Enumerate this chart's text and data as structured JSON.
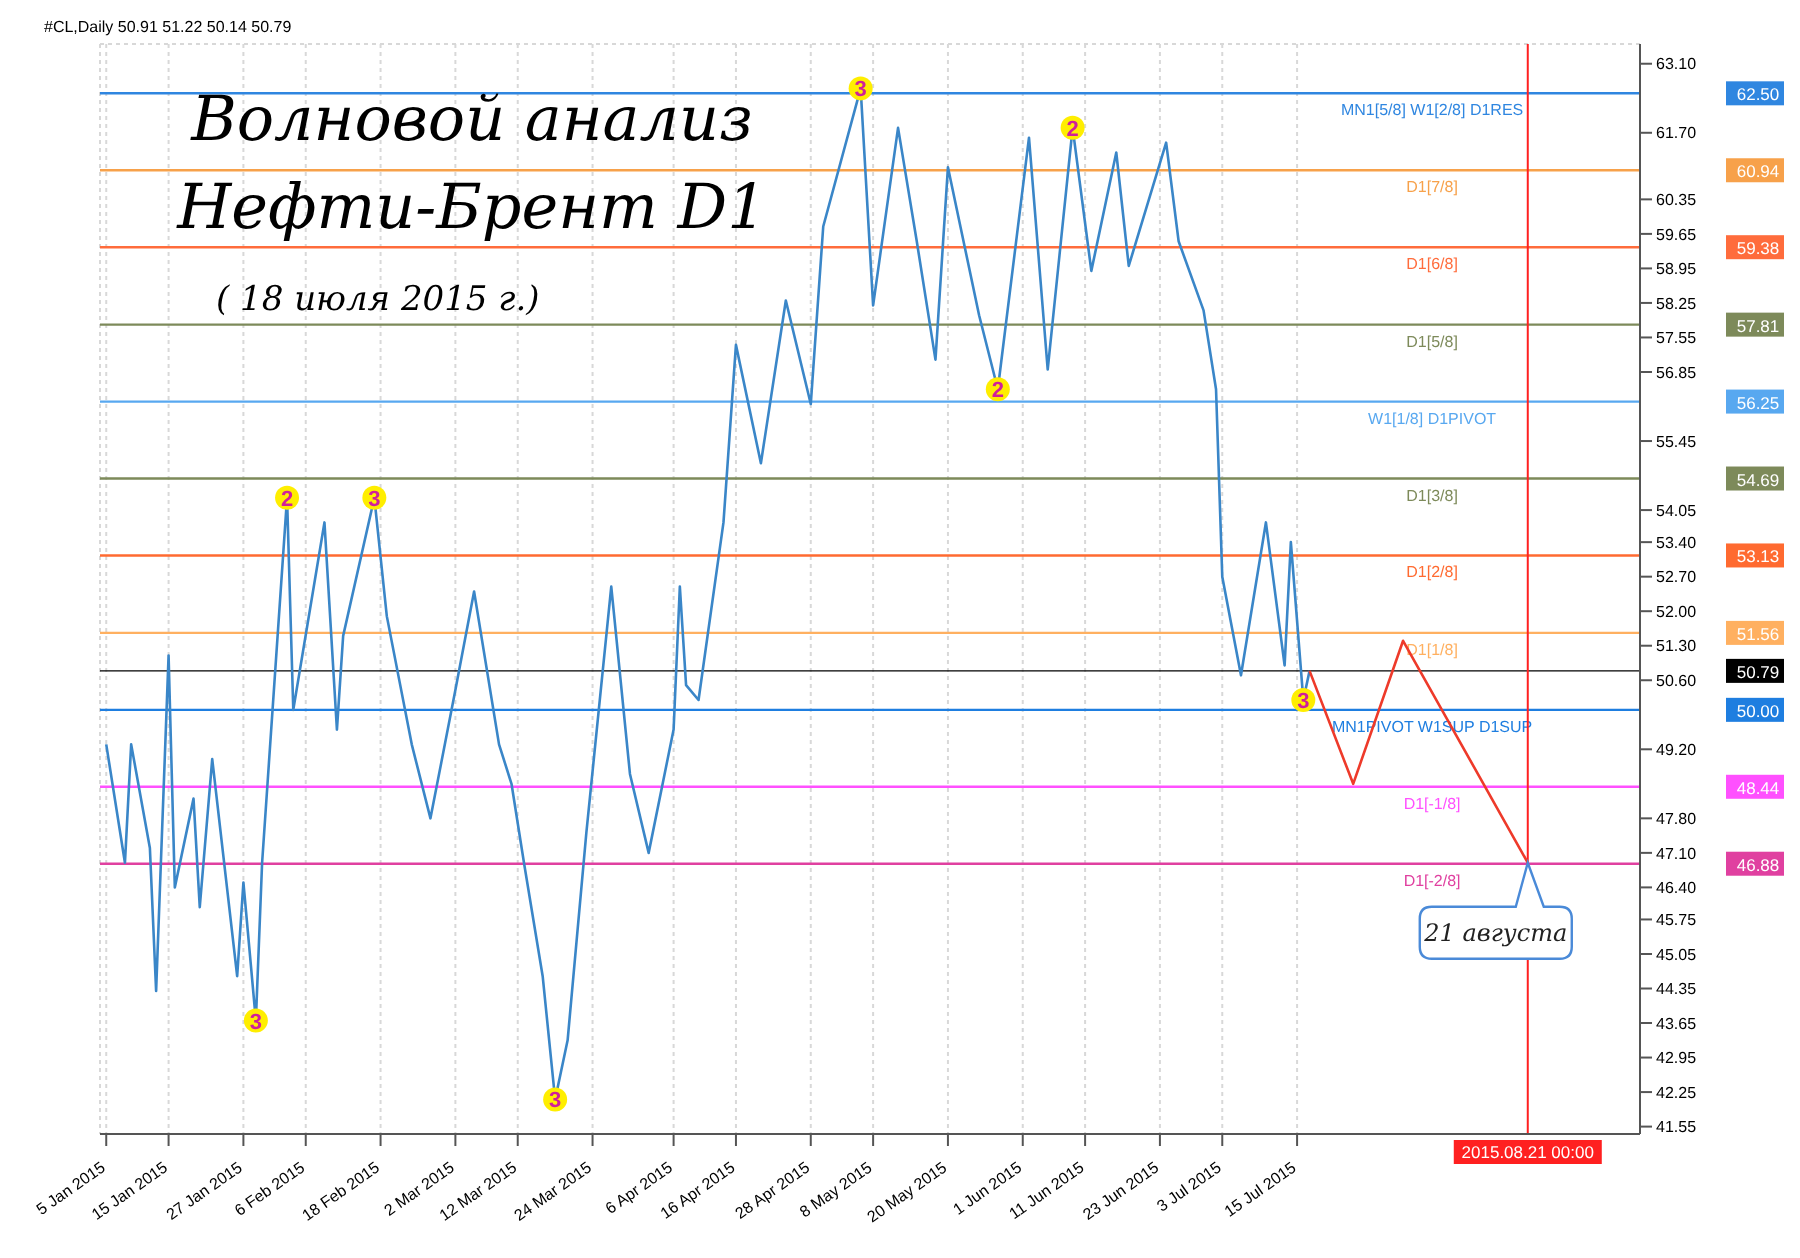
{
  "chart_data": {
    "type": "line",
    "title": "Волновой анализ Нефти-Брент D1",
    "subtitle": "( 18 июля 2015 г.)",
    "annotations": [
      "#CL,Daily  50.91 51.22 50.14 50.79",
      {
        "text": "3",
        "x": "2015-01-29",
        "y": 43.7
      },
      {
        "text": "2",
        "x": "2015-02-03",
        "y": 54.3
      },
      {
        "text": "3",
        "x": "2015-02-17",
        "y": 54.3
      },
      {
        "text": "3",
        "x": "2015-03-18",
        "y": 42.1
      },
      {
        "text": "3",
        "x": "2015-05-06",
        "y": 62.6
      },
      {
        "text": "2",
        "x": "2015-05-28",
        "y": 56.5
      },
      {
        "text": "2",
        "x": "2015-06-09",
        "y": 61.8
      },
      {
        "text": "3",
        "x": "2015-07-16",
        "y": 50.2
      },
      {
        "text": "21 августа",
        "x": "2015-08-21",
        "y": 46.9
      }
    ],
    "series": [
      {
        "color": "#3a86c8",
        "x": [
          "2015-01-05",
          "2015-01-08",
          "2015-01-09",
          "2015-01-12",
          "2015-01-13",
          "2015-01-15",
          "2015-01-16",
          "2015-01-19",
          "2015-01-20",
          "2015-01-22",
          "2015-01-26",
          "2015-01-27",
          "2015-01-29",
          "2015-01-30",
          "2015-02-03",
          "2015-02-04",
          "2015-02-09",
          "2015-02-11",
          "2015-02-12",
          "2015-02-17",
          "2015-02-19",
          "2015-02-23",
          "2015-02-26",
          "2015-03-02",
          "2015-03-05",
          "2015-03-09",
          "2015-03-11",
          "2015-03-13",
          "2015-03-16",
          "2015-03-18",
          "2015-03-20",
          "2015-03-23",
          "2015-03-27",
          "2015-03-30",
          "2015-04-02",
          "2015-04-06",
          "2015-04-07",
          "2015-04-08",
          "2015-04-10",
          "2015-04-14",
          "2015-04-16",
          "2015-04-20",
          "2015-04-24",
          "2015-04-28",
          "2015-04-30",
          "2015-05-06",
          "2015-05-08",
          "2015-05-12",
          "2015-05-15",
          "2015-05-18",
          "2015-05-20",
          "2015-05-25",
          "2015-05-28",
          "2015-06-02",
          "2015-06-05",
          "2015-06-09",
          "2015-06-12",
          "2015-06-16",
          "2015-06-18",
          "2015-06-24",
          "2015-06-26",
          "2015-06-30",
          "2015-07-02",
          "2015-07-03",
          "2015-07-06",
          "2015-07-10",
          "2015-07-13",
          "2015-07-14",
          "2015-07-16",
          "2015-07-17"
        ],
        "values": [
          49.3,
          46.9,
          49.3,
          47.2,
          44.3,
          51.1,
          46.4,
          48.2,
          46.0,
          49.0,
          44.6,
          46.5,
          43.7,
          46.9,
          54.3,
          50.0,
          53.8,
          49.6,
          51.5,
          54.3,
          51.9,
          49.3,
          47.8,
          50.4,
          52.4,
          49.3,
          48.5,
          46.9,
          44.6,
          42.1,
          43.3,
          47.5,
          52.5,
          48.7,
          47.1,
          49.6,
          52.5,
          50.5,
          50.2,
          53.8,
          57.4,
          55.0,
          58.3,
          56.2,
          59.8,
          62.6,
          58.2,
          61.8,
          59.5,
          57.1,
          61.0,
          58.0,
          56.5,
          61.6,
          56.9,
          61.8,
          58.9,
          61.3,
          59.0,
          61.5,
          59.5,
          58.1,
          56.5,
          52.7,
          50.7,
          53.8,
          50.9,
          53.4,
          50.2,
          50.79
        ]
      },
      {
        "color": "#ee3a2a",
        "x": [
          "2015-07-17",
          "2015-07-24",
          "2015-08-01",
          "2015-08-21"
        ],
        "values": [
          50.79,
          48.5,
          51.4,
          46.9
        ]
      }
    ],
    "xlim": [
      "2015-01-04",
      "2015-09-08"
    ],
    "xticks": [
      {
        "value": "2015-01-05",
        "label": "5 Jan 2015"
      },
      {
        "value": "2015-01-15",
        "label": "15 Jan 2015"
      },
      {
        "value": "2015-01-27",
        "label": "27 Jan 2015"
      },
      {
        "value": "2015-02-06",
        "label": "6 Feb 2015"
      },
      {
        "value": "2015-02-18",
        "label": "18 Feb 2015"
      },
      {
        "value": "2015-03-02",
        "label": "2 Mar 2015"
      },
      {
        "value": "2015-03-12",
        "label": "12 Mar 2015"
      },
      {
        "value": "2015-03-24",
        "label": "24 Mar 2015"
      },
      {
        "value": "2015-04-06",
        "label": "6 Apr 2015"
      },
      {
        "value": "2015-04-16",
        "label": "16 Apr 2015"
      },
      {
        "value": "2015-04-28",
        "label": "28 Apr 2015"
      },
      {
        "value": "2015-05-08",
        "label": "8 May 2015"
      },
      {
        "value": "2015-05-20",
        "label": "20 May 2015"
      },
      {
        "value": "2015-06-01",
        "label": "1 Jun 2015"
      },
      {
        "value": "2015-06-11",
        "label": "11 Jun 2015"
      },
      {
        "value": "2015-06-23",
        "label": "23 Jun 2015"
      },
      {
        "value": "2015-07-03",
        "label": "3 Jul 2015"
      },
      {
        "value": "2015-07-15",
        "label": "15 Jul 2015"
      }
    ],
    "ylim": [
      41.4,
      63.5
    ],
    "yticks": [
      {
        "value": 63.1,
        "label": "63.10"
      },
      {
        "value": 61.7,
        "label": "61.70"
      },
      60.35,
      59.65,
      58.95,
      58.25,
      57.55,
      56.85,
      55.45,
      54.05,
      {
        "value": 53.4,
        "label": "53.40"
      },
      {
        "value": 52.7,
        "label": "52.70"
      },
      {
        "value": 52,
        "label": "52.00"
      },
      {
        "value": 51.3,
        "label": "51.30"
      },
      {
        "value": 50.6,
        "label": "50.60"
      },
      {
        "value": 49.2,
        "label": "49.20"
      },
      {
        "value": 47.8,
        "label": "47.80"
      },
      {
        "value": 47.1,
        "label": "47.10"
      },
      {
        "value": 46.4,
        "label": "46.40"
      },
      45.75,
      45.05,
      44.35,
      43.65,
      42.95,
      42.25,
      41.55
    ],
    "y2lim": [
      41.4,
      63.5
    ],
    "y2ticks": [
      {
        "value": 62.5,
        "label": "62.50"
      },
      60.94,
      59.38,
      57.81,
      56.25,
      54.69,
      53.13,
      51.56,
      50.79,
      {
        "value": 50,
        "label": "50.00"
      },
      48.44,
      46.88
    ],
    "ref_lines": [
      {
        "axis": "y",
        "value": 62.5,
        "label": "MN1[5/8] W1[2/8] D1RES",
        "color": "#2f86e0"
      },
      {
        "axis": "y",
        "value": 60.94,
        "label": "D1[7/8]",
        "color": "#f7a14a"
      },
      {
        "axis": "y",
        "value": 59.38,
        "label": "D1[6/8]",
        "color": "#ff6c3c"
      },
      {
        "axis": "y",
        "value": 57.81,
        "label": "D1[5/8]",
        "color": "#7d8a5a"
      },
      {
        "axis": "y",
        "value": 56.25,
        "label": "W1[1/8] D1PIVOT",
        "color": "#58a8f0"
      },
      {
        "axis": "y",
        "value": 54.69,
        "label": "D1[3/8]",
        "color": "#7d8a5a"
      },
      {
        "axis": "y",
        "value": 53.13,
        "label": "D1[2/8]",
        "color": "#ff6a30"
      },
      {
        "axis": "y",
        "value": 51.56,
        "label": "D1[1/8]",
        "color": "#ffb060"
      },
      {
        "axis": "y",
        "value": 50.79,
        "label": null,
        "color": "#000000"
      },
      {
        "axis": "y",
        "value": 50,
        "label": "MN1PIVOT W1SUP D1SUP",
        "color": "#1e7ee0"
      },
      {
        "axis": "y",
        "value": 48.44,
        "label": "D1[-1/8]",
        "color": "#ff50ff"
      },
      {
        "axis": "y",
        "value": 46.88,
        "label": "D1[-2/8]",
        "color": "#e040a0"
      },
      {
        "axis": "x",
        "value": "2015-08-21",
        "label": "2015.08.21 00:00",
        "color": "#ff2020"
      }
    ],
    "grid": true,
    "legend": false,
    "marker": "none",
    "line_style": "solid"
  }
}
